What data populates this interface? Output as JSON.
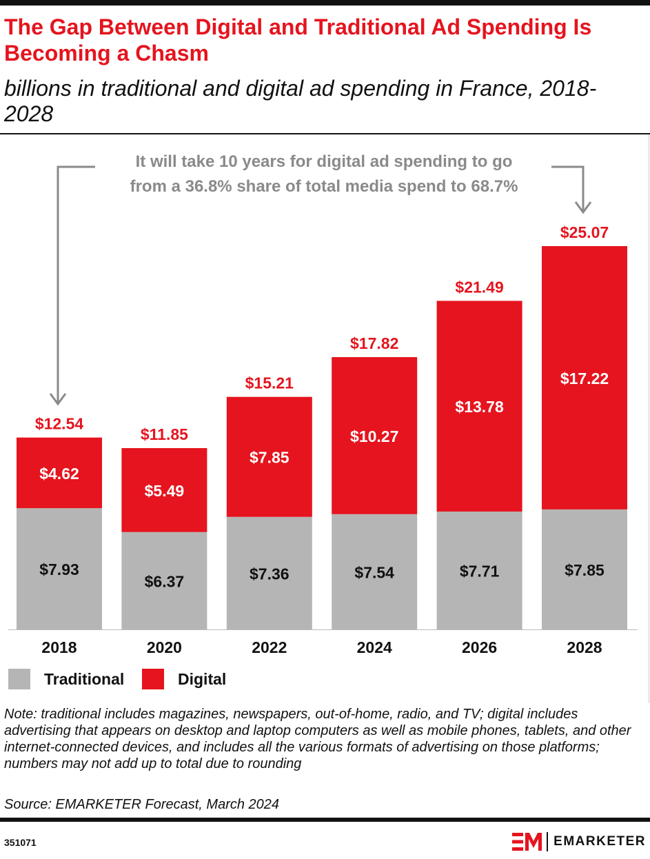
{
  "header": {
    "title": "The Gap Between Digital and Traditional Ad Spending Is Becoming a Chasm",
    "subtitle": "billions in traditional and digital ad spending in France, 2018-2028"
  },
  "colors": {
    "digital": "#e5141e",
    "traditional": "#b5b5b5",
    "annotation": "#8a8a8a"
  },
  "chart_data": {
    "type": "bar",
    "stacked": true,
    "categories": [
      "2018",
      "2020",
      "2022",
      "2024",
      "2026",
      "2028"
    ],
    "series": [
      {
        "name": "Traditional",
        "values": [
          7.93,
          6.37,
          7.36,
          7.54,
          7.71,
          7.85
        ],
        "labels": [
          "$7.93",
          "$6.37",
          "$7.36",
          "$7.54",
          "$7.71",
          "$7.85"
        ]
      },
      {
        "name": "Digital",
        "values": [
          4.62,
          5.49,
          7.85,
          10.27,
          13.78,
          17.22
        ],
        "labels": [
          "$4.62",
          "$5.49",
          "$7.85",
          "$10.27",
          "$13.78",
          "$17.22"
        ]
      }
    ],
    "totals": [
      12.54,
      11.85,
      15.21,
      17.82,
      21.49,
      25.07
    ],
    "total_labels": [
      "$12.54",
      "$11.85",
      "$15.21",
      "$17.82",
      "$21.49",
      "$25.07"
    ],
    "annotation": {
      "lines": [
        "It will take 10 years for digital ad spending to go",
        "from a 36.8% share of total media spend to 68.7%"
      ]
    },
    "ylim": [
      0,
      27
    ],
    "grid": false,
    "legend": {
      "position": "bottom-left",
      "items": [
        "Traditional",
        "Digital"
      ]
    }
  },
  "footer": {
    "note": "Note: traditional includes magazines, newspapers, out-of-home, radio, and TV; digital includes advertising that appears on desktop and laptop computers as well as mobile phones, tablets, and other internet-connected devices, and includes all the various formats of advertising on those platforms; numbers may not add up to total due to rounding",
    "source": "Source: EMARKETER Forecast, March 2024",
    "chart_id": "351071",
    "brand": "EMARKETER"
  }
}
